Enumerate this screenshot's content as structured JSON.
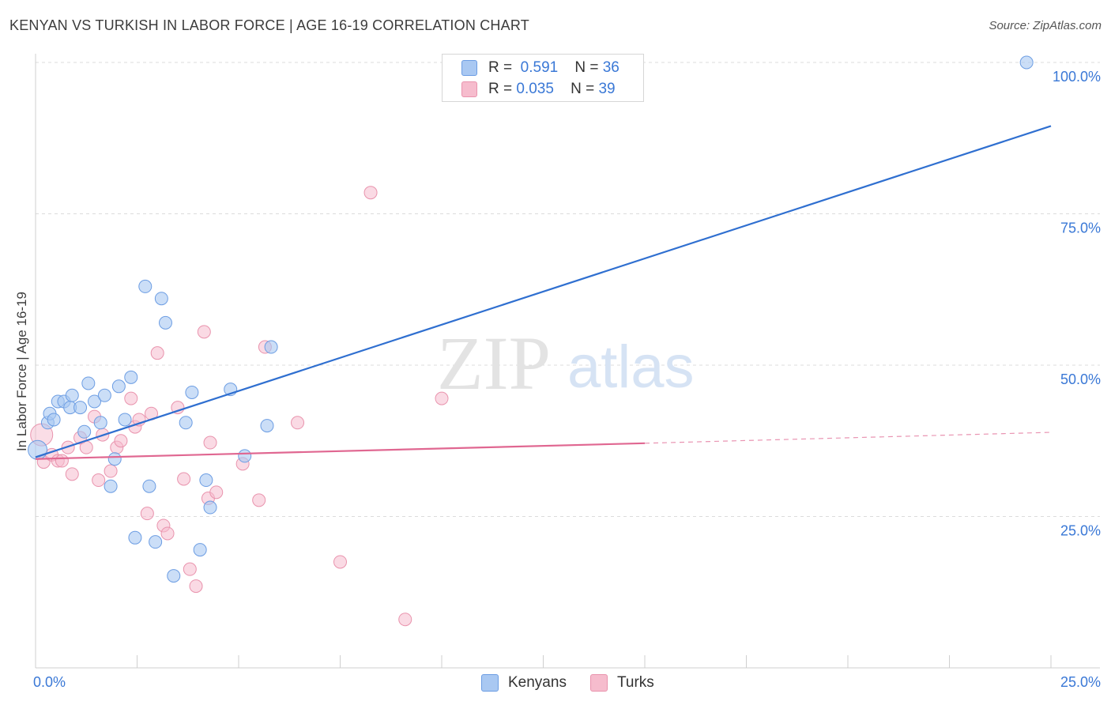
{
  "title": "KENYAN VS TURKISH IN LABOR FORCE | AGE 16-19 CORRELATION CHART",
  "source": "Source: ZipAtlas.com",
  "watermark": {
    "zip": "ZIP",
    "atlas": "atlas"
  },
  "colors": {
    "kenyan_fill": "#a9c8f2",
    "kenyan_stroke": "#6c9de3",
    "kenyan_line": "#2f6fd0",
    "turk_fill": "#f6bccd",
    "turk_stroke": "#e993ad",
    "turk_line": "#e06791",
    "axis_label": "#3a78d6",
    "grid": "#dcdcdc"
  },
  "legend_top": {
    "kenyans": {
      "r_label": "R =",
      "r_value": "0.591",
      "n_label": "N =",
      "n_value": "36"
    },
    "turks": {
      "r_label": "R =",
      "r_value": "0.035",
      "n_label": "N =",
      "n_value": "39"
    }
  },
  "legend_bottom": {
    "kenyans": "Kenyans",
    "turks": "Turks"
  },
  "chart_data": {
    "type": "scatter",
    "title": "KENYAN VS TURKISH IN LABOR FORCE | AGE 16-19 CORRELATION CHART",
    "xlabel": "",
    "ylabel": "In Labor Force | Age 16-19",
    "xlim": [
      0,
      25
    ],
    "ylim": [
      0,
      100
    ],
    "x_ticks": [
      "0.0%",
      "25.0%"
    ],
    "y_ticks": [
      {
        "value": 25,
        "label": "25.0%"
      },
      {
        "value": 50,
        "label": "50.0%"
      },
      {
        "value": 75,
        "label": "75.0%"
      },
      {
        "value": 100,
        "label": "100.0%"
      }
    ],
    "grid": true,
    "series": [
      {
        "name": "Kenyans",
        "r": 0.591,
        "n": 36,
        "points": [
          [
            0.05,
            36.0
          ],
          [
            0.3,
            40.5
          ],
          [
            0.35,
            42.0
          ],
          [
            0.45,
            41.0
          ],
          [
            0.55,
            44.0
          ],
          [
            0.7,
            44.0
          ],
          [
            0.85,
            43.0
          ],
          [
            0.9,
            45.0
          ],
          [
            1.1,
            43.0
          ],
          [
            1.2,
            39.0
          ],
          [
            1.3,
            47.0
          ],
          [
            1.45,
            44.0
          ],
          [
            1.6,
            40.5
          ],
          [
            1.7,
            45.0
          ],
          [
            1.85,
            30.0
          ],
          [
            1.95,
            34.5
          ],
          [
            2.05,
            46.5
          ],
          [
            2.2,
            41.0
          ],
          [
            2.35,
            48.0
          ],
          [
            2.45,
            21.5
          ],
          [
            2.7,
            63.0
          ],
          [
            2.8,
            30.0
          ],
          [
            2.95,
            20.8
          ],
          [
            3.1,
            61.0
          ],
          [
            3.2,
            57.0
          ],
          [
            3.4,
            15.2
          ],
          [
            3.7,
            40.5
          ],
          [
            3.85,
            45.5
          ],
          [
            4.05,
            19.5
          ],
          [
            4.2,
            31.0
          ],
          [
            4.3,
            26.5
          ],
          [
            4.8,
            46.0
          ],
          [
            5.15,
            35.0
          ],
          [
            5.7,
            40.0
          ],
          [
            5.8,
            53.0
          ],
          [
            24.4,
            100.0
          ]
        ],
        "trend": {
          "x": [
            0,
            25
          ],
          "y": [
            34.8,
            89.5
          ],
          "style": "solid"
        }
      },
      {
        "name": "Turks",
        "r": 0.035,
        "n": 39,
        "points": [
          [
            0.15,
            38.5
          ],
          [
            0.2,
            34.0
          ],
          [
            0.4,
            35.2
          ],
          [
            0.55,
            34.2
          ],
          [
            0.65,
            34.2
          ],
          [
            0.8,
            36.4
          ],
          [
            0.9,
            32.0
          ],
          [
            1.1,
            38.0
          ],
          [
            1.25,
            36.4
          ],
          [
            1.45,
            41.5
          ],
          [
            1.55,
            31.0
          ],
          [
            1.65,
            38.5
          ],
          [
            1.85,
            32.5
          ],
          [
            2.0,
            36.4
          ],
          [
            2.1,
            37.5
          ],
          [
            2.35,
            44.5
          ],
          [
            2.45,
            39.8
          ],
          [
            2.55,
            41.0
          ],
          [
            2.75,
            25.5
          ],
          [
            2.85,
            42.0
          ],
          [
            3.0,
            52.0
          ],
          [
            3.15,
            23.5
          ],
          [
            3.25,
            22.2
          ],
          [
            3.5,
            43.0
          ],
          [
            3.65,
            31.2
          ],
          [
            3.8,
            16.3
          ],
          [
            3.95,
            13.5
          ],
          [
            4.15,
            55.5
          ],
          [
            4.25,
            28.0
          ],
          [
            4.3,
            37.2
          ],
          [
            4.45,
            29.0
          ],
          [
            5.1,
            33.7
          ],
          [
            5.5,
            27.7
          ],
          [
            5.65,
            53.0
          ],
          [
            6.45,
            40.5
          ],
          [
            7.5,
            17.5
          ],
          [
            8.25,
            78.5
          ],
          [
            9.1,
            8.0
          ],
          [
            10.0,
            44.5
          ]
        ],
        "trend_solid": {
          "x": [
            0,
            15
          ],
          "y": [
            34.5,
            37.1
          ],
          "style": "solid"
        },
        "trend_dashed": {
          "x": [
            15,
            25
          ],
          "y": [
            37.1,
            38.9
          ],
          "style": "dashed"
        }
      }
    ]
  }
}
